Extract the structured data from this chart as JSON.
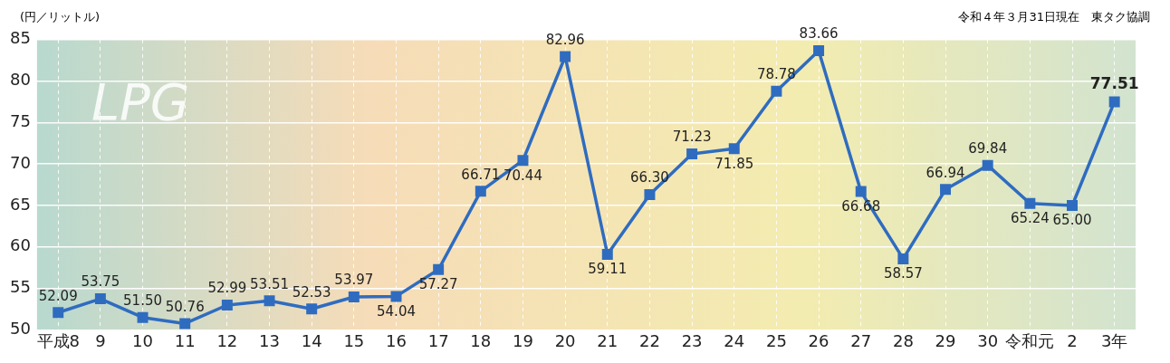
{
  "chart_data": {
    "type": "line",
    "ylabel": "(円／リットル)",
    "annotations": [
      "令和４年３月31日現在　東タク協調",
      "LPG"
    ],
    "categories": [
      "平成8",
      "9",
      "10",
      "11",
      "12",
      "13",
      "14",
      "15",
      "16",
      "17",
      "18",
      "19",
      "20",
      "21",
      "22",
      "23",
      "24",
      "25",
      "26",
      "27",
      "28",
      "29",
      "30",
      "令和元",
      "2",
      "3年"
    ],
    "series": [
      {
        "color": "#2f6cc0",
        "values": [
          52.09,
          53.75,
          51.5,
          50.76,
          52.99,
          53.51,
          52.53,
          53.97,
          54.04,
          57.27,
          66.71,
          70.44,
          82.96,
          59.11,
          66.3,
          71.23,
          71.85,
          78.78,
          83.66,
          66.68,
          58.57,
          66.94,
          69.84,
          65.24,
          65.0,
          77.51
        ],
        "value_labels": [
          "52.09",
          "53.75",
          "51.50",
          "50.76",
          "52.99",
          "53.51",
          "52.53",
          "53.97",
          "54.04",
          "57.27",
          "66.71",
          "70.44",
          "82.96",
          "59.11",
          "66.30",
          "71.23",
          "71.85",
          "78.78",
          "83.66",
          "66.68",
          "58.57",
          "66.94",
          "69.84",
          "65.24",
          "65.00",
          "77.51"
        ]
      }
    ],
    "ylim": [
      50,
      85
    ],
    "yticks": [
      50,
      55,
      60,
      65,
      70,
      75,
      80,
      85
    ],
    "grid": true,
    "marker": "square",
    "line_style": "solid",
    "legend": false
  }
}
